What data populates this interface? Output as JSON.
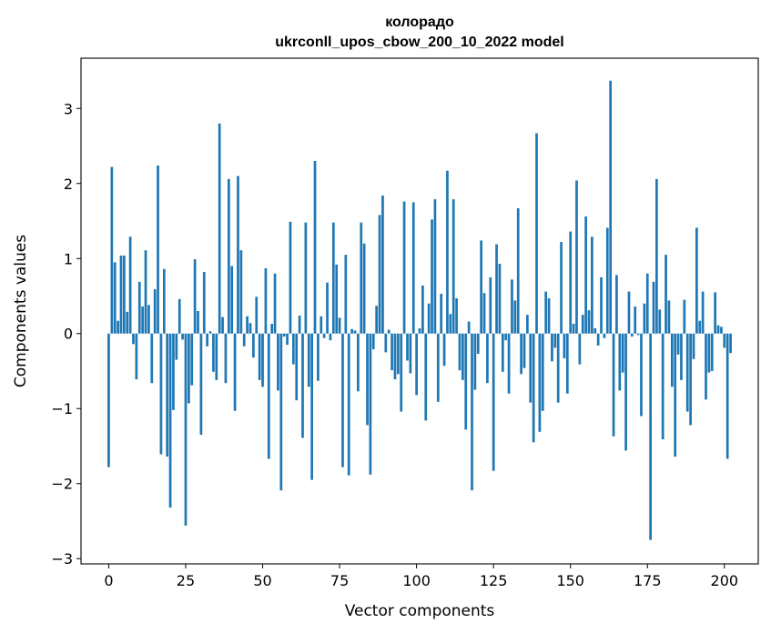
{
  "chart_data": {
    "type": "bar",
    "title_line1": "колорадо",
    "title_line2": "ukrconll_upos_cbow_200_10_2022 model",
    "xlabel": "Vector components",
    "ylabel": "Components values",
    "xlim": [
      -9,
      211
    ],
    "ylim": [
      -3.07,
      3.67
    ],
    "x_ticks": [
      0,
      25,
      50,
      75,
      100,
      125,
      150,
      175,
      200
    ],
    "x_tick_labels": [
      "0",
      "25",
      "50",
      "75",
      "100",
      "125",
      "150",
      "175",
      "200"
    ],
    "y_ticks": [
      -3,
      -2,
      -1,
      0,
      1,
      2,
      3
    ],
    "y_tick_labels": [
      "−3",
      "−2",
      "−1",
      "0",
      "1",
      "2",
      "3"
    ],
    "bar_color": "#1f77b4",
    "grid": false,
    "values": [
      -1.78,
      2.22,
      0.95,
      0.17,
      1.04,
      1.04,
      0.29,
      1.29,
      -0.14,
      -0.61,
      0.69,
      0.36,
      1.11,
      0.38,
      -0.66,
      0.59,
      2.24,
      -1.61,
      0.86,
      -1.64,
      -2.32,
      -1.02,
      -0.35,
      0.46,
      -0.08,
      -2.56,
      -0.93,
      -0.69,
      0.99,
      0.3,
      -1.35,
      0.82,
      -0.17,
      0.03,
      -0.51,
      -0.62,
      2.8,
      0.22,
      -0.66,
      2.06,
      0.9,
      -1.03,
      2.1,
      1.11,
      -0.17,
      0.23,
      0.14,
      -0.32,
      0.49,
      -0.62,
      -0.71,
      0.87,
      -1.67,
      0.13,
      0.8,
      -0.76,
      -2.09,
      -0.04,
      -0.15,
      1.49,
      -0.41,
      -0.89,
      0.24,
      -1.39,
      1.48,
      -0.71,
      -1.95,
      2.3,
      -0.63,
      0.23,
      -0.06,
      0.68,
      -0.09,
      1.48,
      0.92,
      0.21,
      -1.78,
      1.05,
      -1.89,
      0.06,
      0.04,
      -0.77,
      1.48,
      1.2,
      -1.22,
      -1.88,
      -0.21,
      0.37,
      1.58,
      1.84,
      -0.25,
      0.05,
      -0.49,
      -0.61,
      -0.54,
      -1.04,
      1.76,
      -0.36,
      -0.53,
      1.75,
      -0.82,
      0.07,
      0.64,
      -1.16,
      0.4,
      1.52,
      1.79,
      -0.91,
      0.53,
      -0.43,
      2.17,
      0.26,
      1.79,
      0.47,
      -0.49,
      -0.62,
      -1.28,
      0.16,
      -2.09,
      -0.75,
      -0.27,
      1.24,
      0.54,
      -0.66,
      0.75,
      -1.83,
      1.19,
      0.93,
      -0.51,
      -0.09,
      -0.8,
      0.72,
      0.44,
      1.67,
      -0.54,
      -0.46,
      0.25,
      -0.92,
      -1.45,
      2.67,
      -1.31,
      -1.03,
      0.56,
      0.47,
      -0.37,
      -0.19,
      -0.92,
      1.22,
      -0.33,
      -0.8,
      1.36,
      0.13,
      2.04,
      -0.41,
      0.25,
      1.56,
      0.31,
      1.29,
      0.07,
      -0.16,
      0.75,
      -0.06,
      1.41,
      3.37,
      -1.37,
      0.78,
      -0.76,
      -0.52,
      -1.56,
      0.56,
      -0.04,
      0.36,
      -0.02,
      -1.1,
      0.4,
      0.8,
      -2.75,
      0.69,
      2.06,
      0.32,
      -1.41,
      1.05,
      0.44,
      -0.71,
      -1.64,
      -0.28,
      -0.62,
      0.45,
      -1.04,
      -1.22,
      -0.34,
      1.41,
      0.17,
      0.56,
      -0.88,
      -0.52,
      -0.5,
      0.55,
      0.11,
      0.09,
      -0.19,
      -1.67,
      -0.26
    ]
  }
}
